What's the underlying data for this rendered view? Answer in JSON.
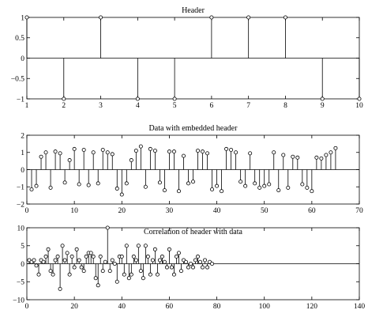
{
  "chart_data": [
    {
      "type": "stem",
      "title": "Header",
      "xlabel": "",
      "ylabel": "",
      "xlim": [
        1,
        10
      ],
      "ylim": [
        -1,
        1
      ],
      "xticks": [
        1,
        2,
        3,
        4,
        5,
        6,
        7,
        8,
        9,
        10
      ],
      "yticks": [
        -1,
        -0.5,
        0,
        0.5,
        1
      ],
      "xtick_labels": [
        "1",
        "2",
        "3",
        "4",
        "5",
        "6",
        "7",
        "8",
        "9",
        "10"
      ],
      "ytick_labels": [
        "−1",
        "−0.5",
        "0",
        "0.5",
        "1"
      ],
      "x": [
        1,
        2,
        3,
        4,
        5,
        6,
        7,
        8,
        9,
        10
      ],
      "values": [
        1,
        -1,
        1,
        -1,
        -1,
        1,
        1,
        1,
        -1,
        -1
      ]
    },
    {
      "type": "stem",
      "title": "Data with embedded header",
      "xlabel": "",
      "ylabel": "",
      "xlim": [
        0,
        70
      ],
      "ylim": [
        -2,
        2
      ],
      "xticks": [
        0,
        10,
        20,
        30,
        40,
        50,
        60,
        70
      ],
      "yticks": [
        -2,
        -1,
        0,
        1,
        2
      ],
      "xtick_labels": [
        "0",
        "10",
        "20",
        "30",
        "40",
        "50",
        "60",
        "70"
      ],
      "ytick_labels": [
        "−2",
        "−1",
        "0",
        "1",
        "2"
      ],
      "x_start": 1,
      "values": [
        -1.15,
        -0.95,
        0.75,
        1.0,
        -1.05,
        1.05,
        0.95,
        -0.75,
        0.55,
        1.2,
        -0.85,
        1.15,
        -0.9,
        1.0,
        -0.8,
        1.15,
        1.0,
        0.9,
        -1.1,
        -1.45,
        -0.8,
        0.55,
        1.1,
        1.35,
        -1.0,
        1.2,
        1.1,
        -0.75,
        -1.2,
        1.05,
        1.05,
        -1.25,
        0.8,
        -0.8,
        -0.7,
        1.1,
        1.05,
        0.95,
        -1.15,
        -0.95,
        -1.25,
        1.2,
        1.15,
        1.0,
        -0.7,
        -0.95,
        0.95,
        -0.8,
        -1.05,
        -0.95,
        -0.85,
        1.0,
        -1.2,
        0.85,
        -1.05,
        0.75,
        0.7,
        -0.85,
        -1.05,
        -1.25,
        0.7,
        0.65,
        0.85,
        1.0,
        1.25
      ]
    },
    {
      "type": "stem",
      "title": "Correlation of header with data",
      "xlabel": "",
      "ylabel": "",
      "xlim": [
        0,
        140
      ],
      "ylim": [
        -10,
        10
      ],
      "xticks": [
        0,
        20,
        40,
        60,
        80,
        100,
        120,
        140
      ],
      "yticks": [
        -10,
        -5,
        0,
        5,
        10
      ],
      "xtick_labels": [
        "0",
        "20",
        "40",
        "60",
        "80",
        "100",
        "120",
        "140"
      ],
      "ytick_labels": [
        "−10",
        "−5",
        "0",
        "5",
        "10"
      ],
      "x_start": 1,
      "values": [
        1,
        0.5,
        1,
        -0.5,
        -3,
        1,
        0.5,
        2,
        4,
        -2,
        -3,
        1,
        2,
        -7,
        5,
        1,
        3,
        -3,
        2,
        -1,
        4,
        1,
        -1,
        -2,
        2,
        3,
        3,
        2,
        -4,
        -6,
        2,
        -2,
        0.5,
        10,
        -2,
        1,
        0,
        -5,
        2,
        2,
        -3,
        5,
        -4,
        -3,
        2,
        1,
        5,
        -2,
        -4,
        5,
        2,
        -3,
        1,
        4,
        -3,
        1,
        2,
        0.5,
        -1,
        4,
        -1,
        -3,
        2,
        3,
        -2,
        1,
        0.5,
        -1,
        0,
        -1,
        1,
        2,
        0.5,
        -1,
        1,
        -1,
        0.5,
        0
      ]
    }
  ]
}
